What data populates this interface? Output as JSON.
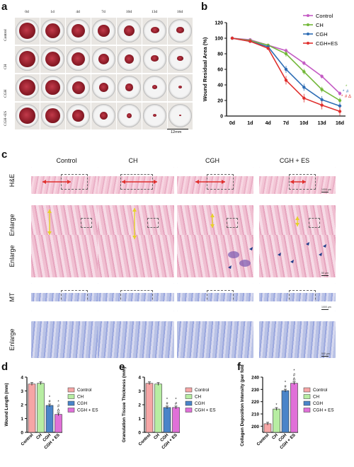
{
  "panel_a": {
    "letter": "a",
    "days": [
      "0d",
      "1d",
      "4d",
      "7d",
      "10d",
      "13d",
      "16d"
    ],
    "groups": [
      "Control",
      "CH",
      "CGH",
      "CGH+ES"
    ],
    "scale_label": "12mm"
  },
  "panel_b": {
    "letter": "b",
    "chart_data": {
      "type": "line",
      "ylabel": "Wound Residual Area (%)",
      "categories": [
        "0d",
        "1d",
        "4d",
        "7d",
        "10d",
        "13d",
        "16d"
      ],
      "ylim": [
        0,
        120
      ],
      "yticks": [
        "0",
        "20",
        "40",
        "60",
        "80",
        "100",
        "120"
      ],
      "legend_position": "top-right",
      "series": [
        {
          "name": "Control",
          "color": "#c45cc4",
          "values": [
            100,
            98,
            91,
            84,
            68,
            51,
            29
          ]
        },
        {
          "name": "CH",
          "color": "#73b83a",
          "values": [
            100,
            97,
            91,
            80,
            57,
            34,
            20
          ]
        },
        {
          "name": "CGH",
          "color": "#2e6db5",
          "values": [
            100,
            96,
            89,
            60,
            37,
            21,
            13
          ]
        },
        {
          "name": "CGH+ES",
          "color": "#e0302e",
          "values": [
            100,
            96,
            87,
            46,
            23,
            14,
            6
          ]
        }
      ],
      "annotations": [
        "*",
        "*",
        "*",
        "#",
        "*",
        "#",
        "Δ"
      ]
    }
  },
  "panel_c": {
    "letter": "c",
    "columns": [
      "Control",
      "CH",
      "CGH",
      "CGH + ES"
    ],
    "rows": [
      "H&E",
      "Enlarge",
      "Enlarge",
      "MT",
      "Enlarge"
    ],
    "scales": [
      "1000 μm",
      "500 μm",
      "50 μm",
      "1000 μm",
      "500 μm"
    ]
  },
  "panel_d": {
    "letter": "d",
    "chart_data": {
      "type": "bar",
      "ylabel": "Wound Length (mm)",
      "categories": [
        "Control",
        "CH",
        "CGH",
        "CGH + ES"
      ],
      "values": [
        3.5,
        3.55,
        1.95,
        1.3
      ],
      "ylim": [
        0,
        4
      ],
      "yticks": [
        "0",
        "1",
        "2",
        "3",
        "4"
      ],
      "colors": [
        "#f6a6a6",
        "#b7eda2",
        "#4a84c9",
        "#e070d8"
      ],
      "annotations": [
        "",
        "",
        "*\n#",
        "*\n#\nΔ"
      ],
      "legend_position": "right"
    }
  },
  "panel_e": {
    "letter": "e",
    "chart_data": {
      "type": "bar",
      "ylabel": "Granulation Tissue Thickness (mm)",
      "categories": [
        "Control",
        "CH",
        "CGH",
        "CGH + ES"
      ],
      "values": [
        3.55,
        3.5,
        1.8,
        1.8
      ],
      "ylim": [
        0,
        4
      ],
      "yticks": [
        "0",
        "1",
        "2",
        "3",
        "4"
      ],
      "colors": [
        "#f6a6a6",
        "#b7eda2",
        "#4a84c9",
        "#e070d8"
      ],
      "annotations": [
        "",
        "",
        "*\n#",
        "*\n#"
      ],
      "legend_position": "right"
    }
  },
  "panel_f": {
    "letter": "f",
    "chart_data": {
      "type": "bar",
      "ylabel": "Collagen Deposition Intensity (per fold)",
      "categories": [
        "Control",
        "CH",
        "CGH",
        "CGH + ES"
      ],
      "values": [
        202,
        214,
        229,
        235
      ],
      "ylim": [
        195,
        240
      ],
      "yticks": [
        "200",
        "210",
        "220",
        "230",
        "240"
      ],
      "colors": [
        "#f6a6a6",
        "#b7eda2",
        "#4a84c9",
        "#e070d8"
      ],
      "annotations": [
        "",
        "*",
        "*\n#",
        "*\n#\nΔ"
      ],
      "legend_position": "right"
    }
  }
}
